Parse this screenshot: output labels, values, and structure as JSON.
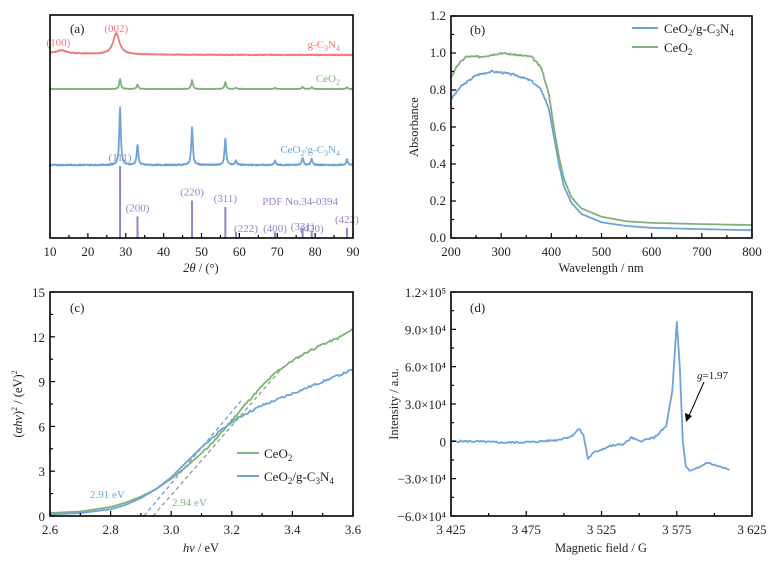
{
  "colors": {
    "gcn": "#f07a7a",
    "ceo2": "#7fb27a",
    "composite": "#6fa3d6",
    "pdf": "#8f86c7",
    "axis": "#000000"
  },
  "chart_data": [
    {
      "id": "a",
      "type": "line",
      "panel_label": "(a)",
      "title": "",
      "xlabel": "2θ / (°)",
      "ylabel": "",
      "xlim": [
        10,
        90
      ],
      "xticks": [
        10,
        20,
        30,
        40,
        50,
        60,
        70,
        80,
        90
      ],
      "series": [
        {
          "name": "g-C3N4",
          "label": "g-C₃N₄",
          "color_key": "gcn",
          "peaks": [
            {
              "x": 13.0,
              "h": 0.08,
              "w": 1.5
            },
            {
              "x": 27.5,
              "h": 0.55,
              "w": 1.0
            }
          ],
          "annotations": [
            {
              "x": 12.2,
              "text": "(100)"
            },
            {
              "x": 27.5,
              "text": "(002)"
            }
          ]
        },
        {
          "name": "CeO2",
          "label": "CeO₂",
          "color_key": "ceo2",
          "peaks": [
            {
              "x": 28.5,
              "h": 0.55
            },
            {
              "x": 33.1,
              "h": 0.25
            },
            {
              "x": 47.5,
              "h": 0.5
            },
            {
              "x": 56.3,
              "h": 0.38
            },
            {
              "x": 59.1,
              "h": 0.08
            },
            {
              "x": 69.4,
              "h": 0.06
            },
            {
              "x": 76.7,
              "h": 0.12
            },
            {
              "x": 79.1,
              "h": 0.1
            },
            {
              "x": 88.4,
              "h": 0.1
            }
          ]
        },
        {
          "name": "CeO2/g-C3N4",
          "label": "CeO₂/g-C₃N₄",
          "color_key": "composite",
          "peaks": [
            {
              "x": 28.5,
              "h": 1.0
            },
            {
              "x": 33.1,
              "h": 0.35
            },
            {
              "x": 47.5,
              "h": 0.65
            },
            {
              "x": 56.3,
              "h": 0.45
            },
            {
              "x": 59.1,
              "h": 0.08
            },
            {
              "x": 69.4,
              "h": 0.07
            },
            {
              "x": 76.7,
              "h": 0.13
            },
            {
              "x": 79.1,
              "h": 0.1
            },
            {
              "x": 88.4,
              "h": 0.1
            }
          ]
        },
        {
          "name": "PDF No.34-0394",
          "label": "PDF No.34-0394",
          "color_key": "pdf",
          "sticks": [
            {
              "x": 28.5,
              "h": 1.0,
              "hkl": "(111)"
            },
            {
              "x": 33.1,
              "h": 0.3,
              "hkl": "(200)"
            },
            {
              "x": 47.5,
              "h": 0.52,
              "hkl": "(220)"
            },
            {
              "x": 56.3,
              "h": 0.43,
              "hkl": "(311)"
            },
            {
              "x": 59.1,
              "h": 0.08,
              "hkl": "(222)"
            },
            {
              "x": 69.4,
              "h": 0.08,
              "hkl": "(400)"
            },
            {
              "x": 76.7,
              "h": 0.14,
              "hkl": "(331)"
            },
            {
              "x": 79.1,
              "h": 0.08,
              "hkl": "(420)"
            },
            {
              "x": 88.4,
              "h": 0.14,
              "hkl": "(422)"
            }
          ]
        }
      ]
    },
    {
      "id": "b",
      "type": "line",
      "panel_label": "(b)",
      "title": "",
      "xlabel": "Wavelength / nm",
      "ylabel": "Absorbance",
      "xlim": [
        200,
        800
      ],
      "ylim": [
        0.0,
        1.2
      ],
      "xticks": [
        200,
        300,
        400,
        500,
        600,
        700,
        800
      ],
      "yticks": [
        "0.0",
        "0.2",
        "0.4",
        "0.6",
        "0.8",
        "1.0",
        "1.2"
      ],
      "legend": "top-right",
      "series": [
        {
          "name": "CeO2/g-C3N4",
          "label": "CeO₂/g-C₃N₄",
          "color_key": "composite",
          "x": [
            200,
            220,
            250,
            280,
            300,
            330,
            360,
            380,
            395,
            405,
            415,
            425,
            440,
            460,
            500,
            550,
            600,
            700,
            800
          ],
          "y": [
            0.75,
            0.82,
            0.88,
            0.9,
            0.895,
            0.88,
            0.85,
            0.8,
            0.7,
            0.55,
            0.4,
            0.28,
            0.19,
            0.13,
            0.085,
            0.065,
            0.055,
            0.048,
            0.042
          ]
        },
        {
          "name": "CeO2",
          "label": "CeO₂",
          "color_key": "ceo2",
          "x": [
            200,
            215,
            230,
            260,
            300,
            330,
            360,
            380,
            395,
            405,
            415,
            425,
            440,
            460,
            500,
            550,
            600,
            700,
            800
          ],
          "y": [
            0.87,
            0.94,
            0.98,
            0.98,
            1.0,
            0.99,
            0.98,
            0.92,
            0.78,
            0.6,
            0.44,
            0.32,
            0.22,
            0.16,
            0.115,
            0.09,
            0.082,
            0.075,
            0.07
          ]
        }
      ]
    },
    {
      "id": "c",
      "type": "line",
      "panel_label": "(c)",
      "title": "",
      "xlabel": "hν / eV",
      "ylabel": "(αhν)² / (eV)²",
      "xlim": [
        2.6,
        3.6
      ],
      "ylim": [
        0,
        15
      ],
      "xticks": [
        "2.6",
        "2.8",
        "3.0",
        "3.2",
        "3.4",
        "3.6"
      ],
      "yticks": [
        "0",
        "3",
        "6",
        "9",
        "12",
        "15"
      ],
      "legend": "center-right",
      "series": [
        {
          "name": "CeO2",
          "label": "CeO₂",
          "color_key": "ceo2",
          "x": [
            2.6,
            2.7,
            2.8,
            2.85,
            2.9,
            2.95,
            3.0,
            3.05,
            3.1,
            3.15,
            3.2,
            3.25,
            3.3,
            3.35,
            3.4,
            3.45,
            3.5,
            3.55,
            3.6
          ],
          "y": [
            0.2,
            0.3,
            0.6,
            0.9,
            1.3,
            1.8,
            2.5,
            3.3,
            4.2,
            5.2,
            6.4,
            7.6,
            8.7,
            9.7,
            10.4,
            11.0,
            11.5,
            11.9,
            12.5
          ]
        },
        {
          "name": "CeO2/g-C3N4",
          "label": "CeO₂/g-C₃N₄",
          "color_key": "composite",
          "x": [
            2.6,
            2.7,
            2.8,
            2.85,
            2.9,
            2.95,
            3.0,
            3.05,
            3.1,
            3.15,
            3.2,
            3.25,
            3.3,
            3.35,
            3.4,
            3.45,
            3.5,
            3.55,
            3.6
          ],
          "y": [
            0.1,
            0.2,
            0.45,
            0.75,
            1.2,
            1.8,
            2.6,
            3.6,
            4.6,
            5.5,
            6.3,
            6.9,
            7.4,
            7.8,
            8.2,
            8.6,
            9.0,
            9.4,
            9.8
          ]
        }
      ],
      "fit_lines": [
        {
          "series": "CeO2/g-C3N4",
          "color_key": "composite",
          "x0": 2.91,
          "x1": 3.23,
          "y1": 7.7
        },
        {
          "series": "CeO2",
          "color_key": "ceo2",
          "x0": 2.94,
          "x1": 3.37,
          "y1": 10.0
        }
      ],
      "annotations": [
        {
          "text": "2.91 eV",
          "color_key": "composite"
        },
        {
          "text": "2.94 eV",
          "color_key": "ceo2"
        }
      ]
    },
    {
      "id": "d",
      "type": "line",
      "panel_label": "(d)",
      "title": "",
      "xlabel": "Magnetic field / G",
      "ylabel": "Intensity / a.u.",
      "xlim": [
        3425,
        3625
      ],
      "ylim": [
        -60000,
        120000
      ],
      "xticks": [
        "3 425",
        "3 475",
        "3 525",
        "3 575",
        "3 625"
      ],
      "yticks": [
        "−6.0×10⁴",
        "−3.0×10⁴",
        "0",
        "3.0×10⁴",
        "6.0×10⁴",
        "9.0×10⁴",
        "1.2×10⁵"
      ],
      "series": [
        {
          "name": "CeO2/g-C3N4",
          "color_key": "composite",
          "x": [
            3425,
            3440,
            3460,
            3480,
            3495,
            3505,
            3510,
            3513,
            3516,
            3520,
            3530,
            3540,
            3545,
            3550,
            3560,
            3568,
            3572,
            3575,
            3577,
            3579,
            3581,
            3584,
            3590,
            3595,
            3600,
            3610
          ],
          "y": [
            0,
            0,
            -1000,
            -500,
            1000,
            4000,
            10000,
            5000,
            -14000,
            -9000,
            -4000,
            -2000,
            3000,
            0,
            3000,
            12000,
            40000,
            96000,
            60000,
            0,
            -20000,
            -24000,
            -21000,
            -17000,
            -19000,
            -23000
          ]
        }
      ],
      "annotations": [
        {
          "text": "g=1.97",
          "italic_prefix": "g",
          "value": "=1.97",
          "x": 3578
        }
      ]
    }
  ]
}
